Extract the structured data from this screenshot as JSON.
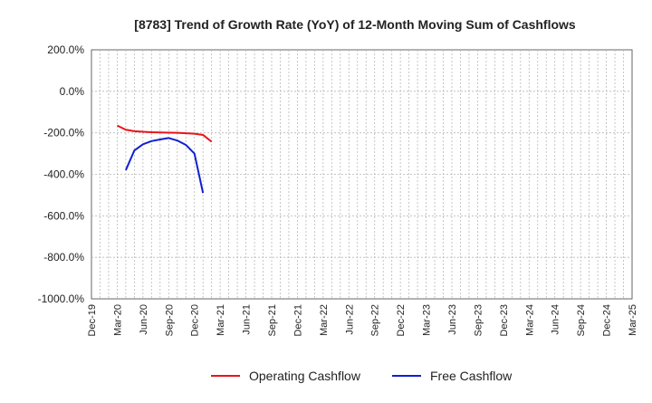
{
  "chart_data": {
    "type": "line",
    "title": "[8783]  Trend of Growth Rate (YoY) of 12-Month Moving Sum of Cashflows",
    "xlabel": "",
    "ylabel": "",
    "x_ticks": [
      "Dec-19",
      "Mar-20",
      "Jun-20",
      "Sep-20",
      "Dec-20",
      "Mar-21",
      "Jun-21",
      "Sep-21",
      "Dec-21",
      "Mar-22",
      "Jun-22",
      "Sep-22",
      "Dec-22",
      "Mar-23",
      "Jun-23",
      "Sep-23",
      "Dec-23",
      "Mar-24",
      "Jun-24",
      "Sep-24",
      "Dec-24",
      "Mar-25"
    ],
    "y_ticks": [
      "200.0%",
      "0.0%",
      "-200.0%",
      "-400.0%",
      "-600.0%",
      "-800.0%",
      "-1000.0%"
    ],
    "ylim": [
      -1000,
      200
    ],
    "grid": true,
    "legend_position": "bottom",
    "series": [
      {
        "name": "Operating Cashflow",
        "color": "#e8141a",
        "x": [
          "Mar-20",
          "Apr-20",
          "May-20",
          "Jun-20",
          "Jul-20",
          "Aug-20",
          "Sep-20",
          "Oct-20",
          "Nov-20",
          "Dec-20",
          "Jan-21",
          "Feb-21"
        ],
        "values": [
          -165,
          -185,
          -192,
          -195,
          -197,
          -198,
          -199,
          -200,
          -202,
          -204,
          -210,
          -243
        ]
      },
      {
        "name": "Free Cashflow",
        "color": "#1020d0",
        "x": [
          "Apr-20",
          "May-20",
          "Jun-20",
          "Jul-20",
          "Aug-20",
          "Sep-20",
          "Oct-20",
          "Nov-20",
          "Dec-20",
          "Jan-21"
        ],
        "values": [
          -380,
          -285,
          -255,
          -240,
          -232,
          -225,
          -237,
          -258,
          -300,
          -490
        ]
      }
    ]
  }
}
